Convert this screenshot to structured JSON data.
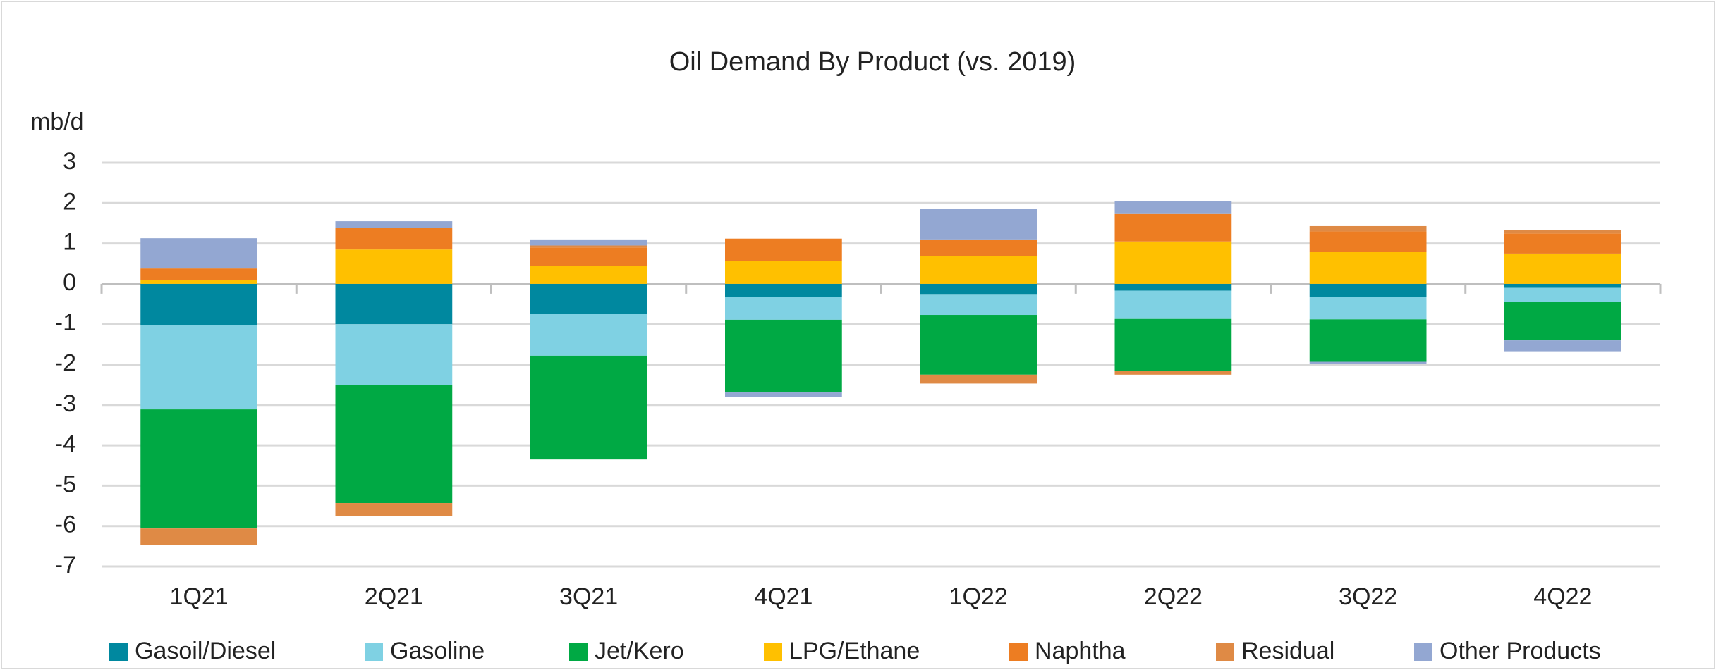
{
  "chart_data": {
    "type": "stacked_bar",
    "title": "Oil Demand By Product (vs. 2019)",
    "y_axis_label": "mb/d",
    "categories": [
      "1Q21",
      "2Q21",
      "3Q21",
      "4Q21",
      "1Q22",
      "2Q22",
      "3Q22",
      "4Q22"
    ],
    "series": [
      {
        "name": "Gasoil/Diesel",
        "color": "#00889f",
        "values": [
          -1.03,
          -1.0,
          -0.75,
          -0.32,
          -0.27,
          -0.17,
          -0.33,
          -0.1
        ]
      },
      {
        "name": "Gasoline",
        "color": "#7fd1e3",
        "values": [
          -2.08,
          -1.5,
          -1.03,
          -0.57,
          -0.5,
          -0.7,
          -0.55,
          -0.35
        ]
      },
      {
        "name": "Jet/Kero",
        "color": "#00a944",
        "values": [
          -2.95,
          -2.93,
          -2.57,
          -1.8,
          -1.48,
          -1.28,
          -1.05,
          -0.95
        ]
      },
      {
        "name": "LPG/Ethane",
        "color": "#ffc000",
        "values": [
          0.1,
          0.85,
          0.45,
          0.57,
          0.68,
          1.05,
          0.8,
          0.75
        ]
      },
      {
        "name": "Naphtha",
        "color": "#ed7d22",
        "values": [
          0.28,
          0.53,
          0.45,
          0.55,
          0.42,
          0.68,
          0.5,
          0.5
        ]
      },
      {
        "name": "Residual",
        "color": "#df8a45",
        "values": [
          -0.4,
          -0.32,
          0.05,
          0,
          -0.22,
          -0.1,
          0.13,
          0.08
        ]
      },
      {
        "name": "Other Products",
        "color": "#93a7d2",
        "values": [
          0.75,
          0.17,
          0.15,
          -0.12,
          0.75,
          0.32,
          -0.05,
          -0.27
        ]
      }
    ],
    "ylim": [
      -7,
      3
    ],
    "yticks": [
      -7,
      -6,
      -5,
      -4,
      -3,
      -2,
      -1,
      0,
      1,
      2,
      3
    ],
    "grid": true,
    "legend": "bottom"
  }
}
